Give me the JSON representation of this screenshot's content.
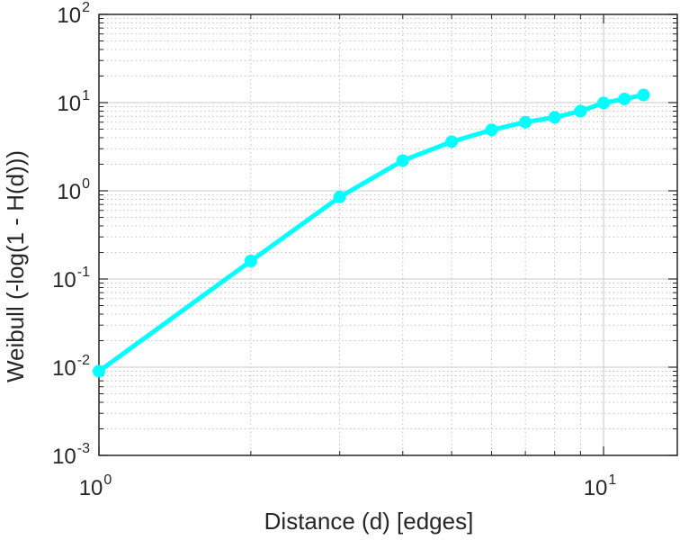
{
  "chart_data": {
    "type": "line",
    "scale": {
      "x": "log",
      "y": "log"
    },
    "xlabel": "Distance (d) [edges]",
    "ylabel": "Weibull (-log(1 - H(d)))",
    "xlim": [
      1,
      14
    ],
    "ylim": [
      0.001,
      100
    ],
    "grid": true,
    "x_ticks": [
      {
        "value": 1,
        "base": "10",
        "exp": "0"
      },
      {
        "value": 10,
        "base": "10",
        "exp": "1"
      }
    ],
    "y_ticks": [
      {
        "value": 0.001,
        "base": "10",
        "exp": "-3"
      },
      {
        "value": 0.01,
        "base": "10",
        "exp": "-2"
      },
      {
        "value": 0.1,
        "base": "10",
        "exp": "-1"
      },
      {
        "value": 1,
        "base": "10",
        "exp": "0"
      },
      {
        "value": 10,
        "base": "10",
        "exp": "1"
      },
      {
        "value": 100,
        "base": "10",
        "exp": "2"
      }
    ],
    "series": [
      {
        "name": "Weibull",
        "color": "#00ffff",
        "x": [
          1,
          2,
          3,
          4,
          5,
          6,
          7,
          8,
          9,
          10,
          11,
          12
        ],
        "y": [
          0.009,
          0.16,
          0.85,
          2.2,
          3.6,
          4.9,
          6.0,
          6.8,
          8.0,
          9.9,
          11.0,
          12.2
        ]
      }
    ]
  }
}
